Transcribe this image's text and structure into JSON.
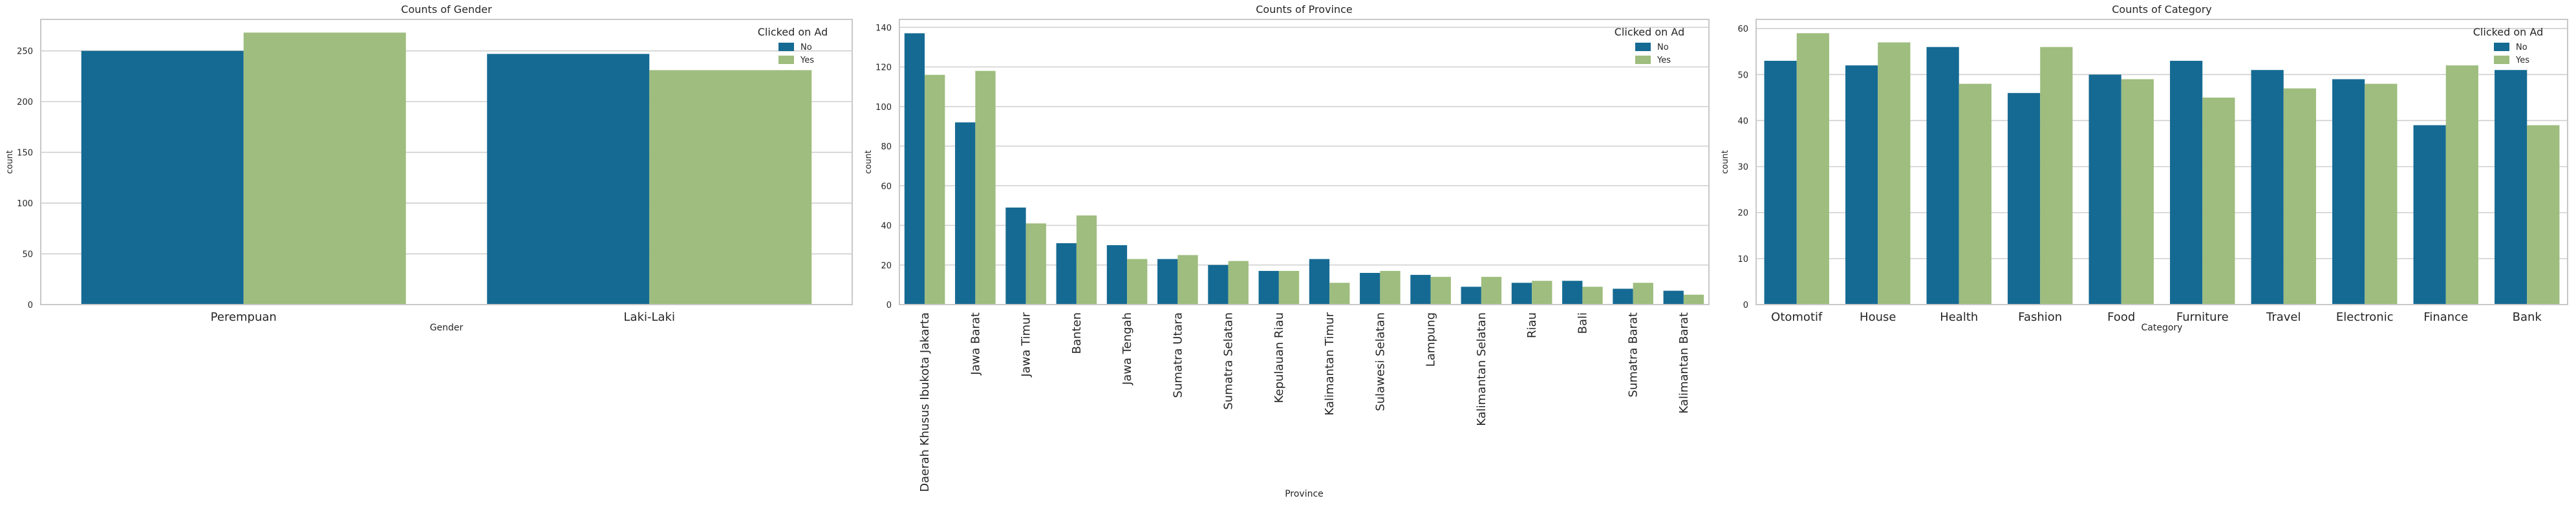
{
  "colors": {
    "No": "#156a93",
    "Yes": "#9ebd7e",
    "grid": "#cfcfcf",
    "frame": "#c8c8c8"
  },
  "chart_data": [
    {
      "type": "bar",
      "title": "Counts of Gender",
      "xlabel": "Gender",
      "ylabel": "count",
      "categories": [
        "Perempuan",
        "Laki-Laki"
      ],
      "series": [
        {
          "name": "No",
          "values": [
            250,
            247
          ]
        },
        {
          "name": "Yes",
          "values": [
            268,
            231
          ]
        }
      ],
      "ylim": [
        0,
        281
      ],
      "yticks": [
        0,
        50,
        100,
        150,
        200,
        250
      ],
      "grid": true,
      "legend": {
        "title": "Clicked on Ad",
        "position": "top-right"
      }
    },
    {
      "type": "bar",
      "title": "Counts of Province",
      "xlabel": "Province",
      "ylabel": "count",
      "categories": [
        "Daerah Khusus Ibukota Jakarta",
        "Jawa Barat",
        "Jawa Timur",
        "Banten",
        "Jawa Tengah",
        "Sumatra Utara",
        "Sumatra Selatan",
        "Kepulauan Riau",
        "Kalimantan Timur",
        "Sulawesi Selatan",
        "Lampung",
        "Kalimantan Selatan",
        "Riau",
        "Bali",
        "Sumatra Barat",
        "Kalimantan Barat"
      ],
      "series": [
        {
          "name": "No",
          "values": [
            137,
            92,
            49,
            31,
            30,
            23,
            20,
            17,
            23,
            16,
            15,
            9,
            11,
            12,
            8,
            7
          ]
        },
        {
          "name": "Yes",
          "values": [
            116,
            118,
            41,
            45,
            23,
            25,
            22,
            17,
            11,
            17,
            14,
            14,
            12,
            9,
            11,
            5
          ]
        }
      ],
      "ylim": [
        0,
        144
      ],
      "yticks": [
        0,
        20,
        40,
        60,
        80,
        100,
        120,
        140
      ],
      "grid": true,
      "legend": {
        "title": "Clicked on Ad",
        "position": "top-right"
      }
    },
    {
      "type": "bar",
      "title": "Counts of Category",
      "xlabel": "Category",
      "ylabel": "count",
      "categories": [
        "Otomotif",
        "House",
        "Health",
        "Fashion",
        "Food",
        "Furniture",
        "Travel",
        "Electronic",
        "Finance",
        "Bank"
      ],
      "series": [
        {
          "name": "No",
          "values": [
            53,
            52,
            56,
            46,
            50,
            53,
            51,
            49,
            39,
            51
          ]
        },
        {
          "name": "Yes",
          "values": [
            59,
            57,
            48,
            56,
            49,
            45,
            47,
            48,
            52,
            39
          ]
        }
      ],
      "ylim": [
        0,
        62
      ],
      "yticks": [
        0,
        10,
        20,
        30,
        40,
        50,
        60
      ],
      "grid": true,
      "legend": {
        "title": "Clicked on Ad",
        "position": "top-right"
      }
    }
  ]
}
